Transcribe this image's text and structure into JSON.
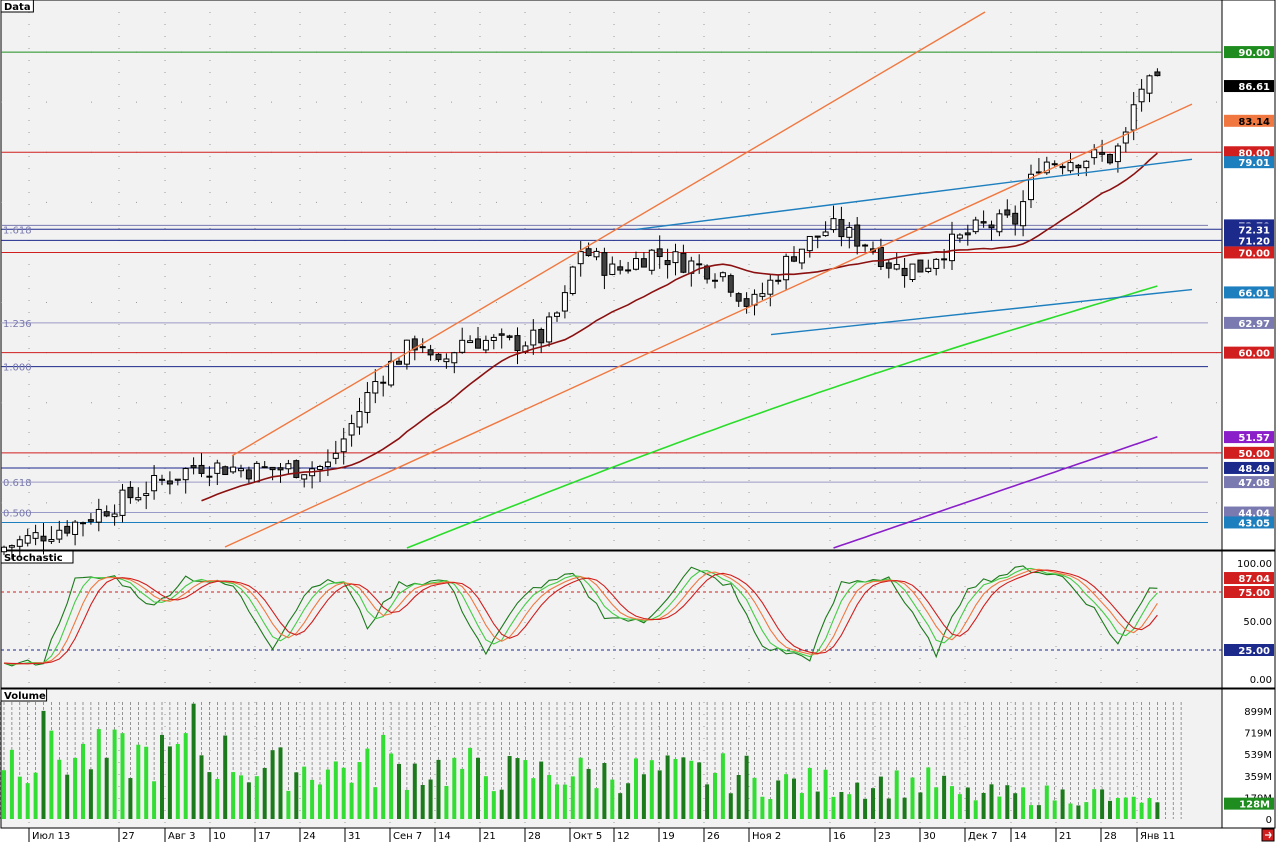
{
  "panels": {
    "price_title": "Data",
    "stoch_title": "Stochastic",
    "volume_title": "Volume"
  },
  "colors": {
    "bg": "#f2f2f2",
    "grid_dot": "#9a9a9a",
    "red_line": "#d11e1e",
    "blue_line": "#1c2a8c",
    "orange": "#f07840",
    "steel_blue": "#1e7fbf",
    "ma_red": "#8b1010",
    "ma_green": "#2bdc2b",
    "ma_purple": "#8a1ec8",
    "vol_light": "#33dd33",
    "vol_dark": "#1c7a1c"
  },
  "x_axis": {
    "labels": [
      "Июл 13",
      "27",
      "Авг 3",
      "10",
      "17",
      "24",
      "31",
      "Сен 7",
      "14",
      "21",
      "28",
      "Окт 5",
      "12",
      "19",
      "26",
      "Ноя 2",
      "16",
      "23",
      "30",
      "Дек 7",
      "14",
      "21",
      "28",
      "Янв 11"
    ]
  },
  "price_scale": {
    "tags": [
      {
        "value": "90.00",
        "bg": "#1e8c1e",
        "fg": "#ffffff"
      },
      {
        "value": "86.61",
        "bg": "#000000",
        "fg": "#ffffff"
      },
      {
        "value": "83.14",
        "bg": "#f07840",
        "fg": "#000000"
      },
      {
        "value": "80.00",
        "bg": "#d11e1e",
        "fg": "#ffffff"
      },
      {
        "value": "79.01",
        "bg": "#1e7fbf",
        "fg": "#ffffff"
      },
      {
        "value": "72.70",
        "bg": "#1c2a8c",
        "fg": "#ffffff"
      },
      {
        "value": "72.31",
        "bg": "#1c2a8c",
        "fg": "#ffffff"
      },
      {
        "value": "71.20",
        "bg": "#1c2a8c",
        "fg": "#ffffff"
      },
      {
        "value": "70.00",
        "bg": "#d11e1e",
        "fg": "#ffffff"
      },
      {
        "value": "66.01",
        "bg": "#1e7fbf",
        "fg": "#ffffff"
      },
      {
        "value": "62.97",
        "bg": "#7a7ab0",
        "fg": "#ffffff"
      },
      {
        "value": "60.00",
        "bg": "#d11e1e",
        "fg": "#ffffff"
      },
      {
        "value": "51.57",
        "bg": "#8a1ec8",
        "fg": "#ffffff"
      },
      {
        "value": "50.00",
        "bg": "#d11e1e",
        "fg": "#ffffff"
      },
      {
        "value": "48.49",
        "bg": "#1c2a8c",
        "fg": "#ffffff"
      },
      {
        "value": "47.08",
        "bg": "#7a7ab0",
        "fg": "#ffffff"
      },
      {
        "value": "44.04",
        "bg": "#7a7ab0",
        "fg": "#ffffff"
      },
      {
        "value": "43.05",
        "bg": "#1e7fbf",
        "fg": "#ffffff"
      }
    ],
    "fib_labels": [
      {
        "text": "1.618",
        "price": 72.31
      },
      {
        "text": "1.236",
        "price": 62.97
      },
      {
        "text": "1.000",
        "price": 58.6
      },
      {
        "text": "0.618",
        "price": 47.08
      },
      {
        "text": "0.500",
        "price": 44.04
      }
    ]
  },
  "stoch_scale": {
    "ticks": [
      "100.00",
      "50.00",
      "0.00"
    ],
    "tags": [
      {
        "value": "87.04",
        "bg": "#d11e1e",
        "fg": "#ffffff"
      },
      {
        "value": "75.00",
        "bg": "#d11e1e",
        "fg": "#ffffff"
      },
      {
        "value": "25.00",
        "bg": "#1c2a8c",
        "fg": "#ffffff"
      }
    ]
  },
  "volume_scale": {
    "ticks": [
      "899M",
      "719M",
      "539M",
      "359M",
      "179M",
      "0"
    ],
    "tags": [
      {
        "value": "128M",
        "bg": "#1e8c1e",
        "fg": "#ffffff"
      }
    ]
  },
  "chart_data": [
    {
      "type": "candlestick",
      "title": "Data",
      "ylim": [
        40.5,
        94
      ],
      "horizontal_levels": [
        90,
        80,
        72.7,
        72.31,
        71.2,
        70,
        60,
        58.6,
        50,
        48.49,
        47.08,
        44.04,
        43.05,
        62.97
      ],
      "last": 86.61,
      "overlays": [
        "SMA (dark red)",
        "SMA (green)",
        "SMA (purple)",
        "trend channel (orange)",
        "trend channel (blue)"
      ]
    },
    {
      "type": "line",
      "title": "Stochastic",
      "ylim": [
        0,
        100
      ],
      "levels": [
        75,
        25
      ],
      "last": 87.04
    },
    {
      "type": "bar",
      "title": "Volume",
      "ylim": [
        0,
        1000
      ],
      "unit": "M",
      "last": 128
    }
  ]
}
